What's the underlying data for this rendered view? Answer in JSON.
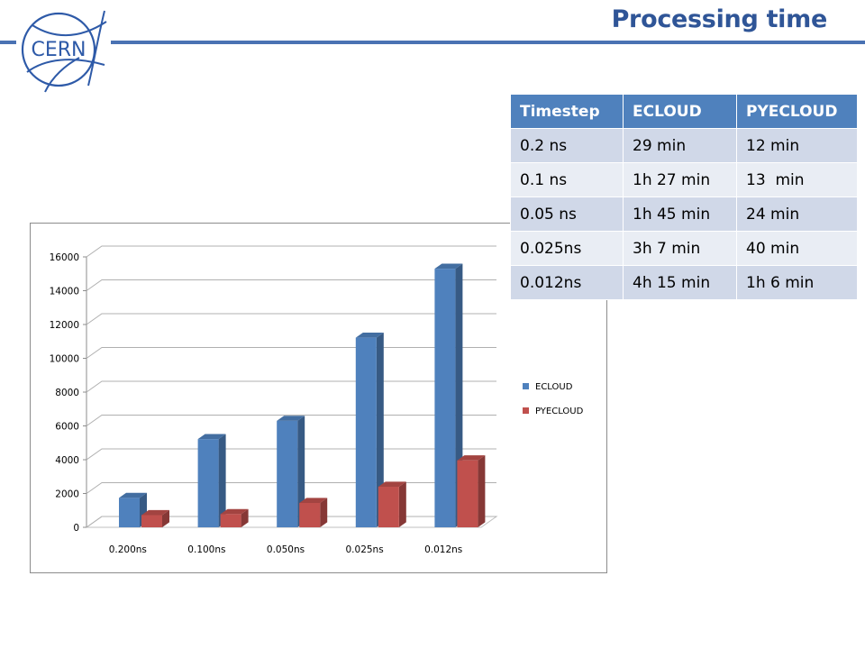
{
  "slide": {
    "title": "Processing time"
  },
  "logo": {
    "text": "CERN"
  },
  "table": {
    "headers": [
      "Timestep",
      "ECLOUD",
      "PYECLOUD"
    ],
    "rows": [
      [
        "0.2 ns",
        "29 min",
        "12 min"
      ],
      [
        "0.1 ns",
        "1h 27 min",
        "13  min"
      ],
      [
        "0.05 ns",
        "1h 45 min",
        "24 min"
      ],
      [
        "0.025ns",
        "3h 7 min",
        "40 min"
      ],
      [
        "0.012ns",
        "4h 15 min",
        "1h 6 min"
      ]
    ]
  },
  "chart_data": {
    "type": "bar",
    "style": "3d-clustered-column",
    "categories": [
      "0.200ns",
      "0.100ns",
      "0.050ns",
      "0.025ns",
      "0.012ns"
    ],
    "series": [
      {
        "name": "ECLOUD",
        "values": [
          1740,
          5220,
          6300,
          11220,
          15300
        ],
        "color": "#4f81bd"
      },
      {
        "name": "PYECLOUD",
        "values": [
          720,
          780,
          1440,
          2400,
          3960
        ],
        "color": "#c0504d"
      }
    ],
    "ylim": [
      0,
      16000
    ],
    "yticks": [
      "0",
      "2000",
      "4000",
      "6000",
      "8000",
      "10000",
      "12000",
      "14000",
      "16000"
    ],
    "grid": true,
    "legend": "right"
  }
}
